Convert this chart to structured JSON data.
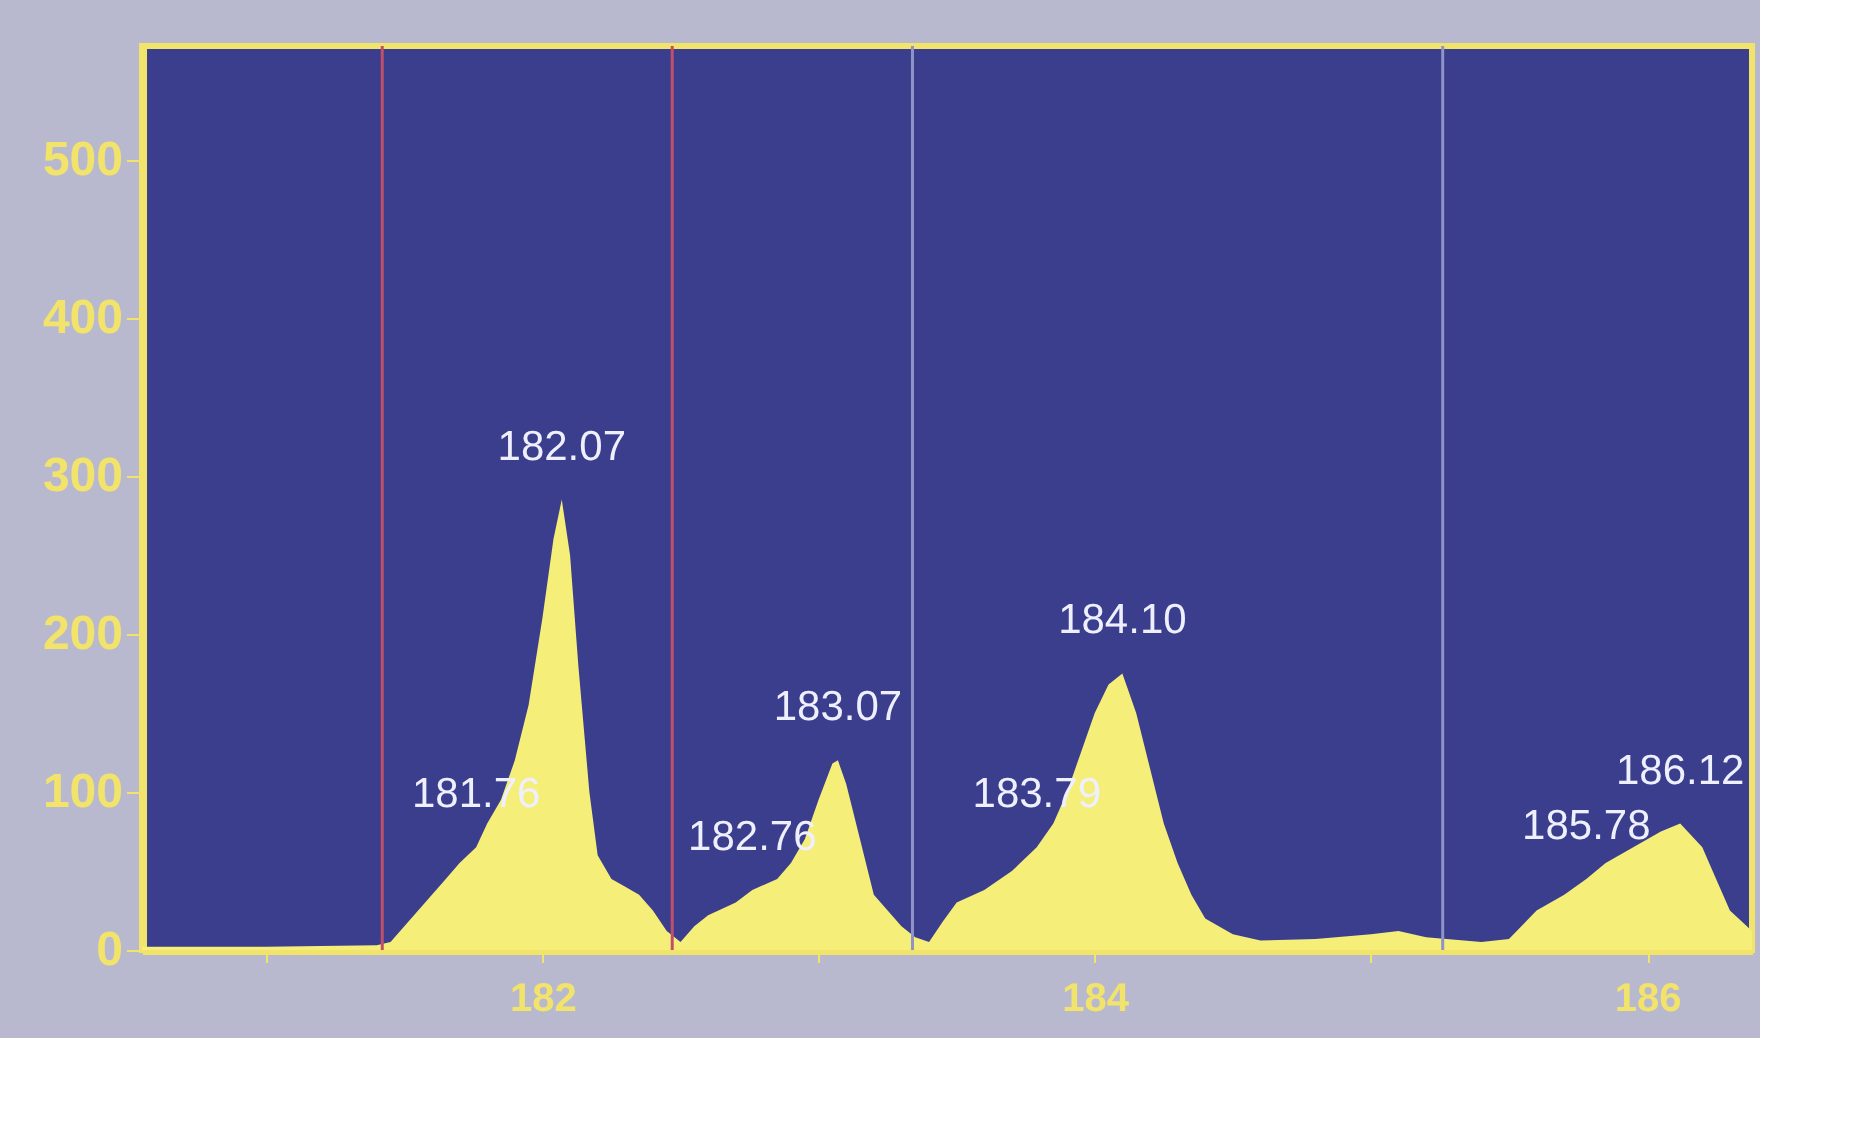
{
  "chart_data": {
    "type": "area",
    "x": [
      180.55,
      181.0,
      181.4,
      181.45,
      181.5,
      181.55,
      181.6,
      181.65,
      181.7,
      181.76,
      181.8,
      181.85,
      181.9,
      181.95,
      182.0,
      182.04,
      182.07,
      182.1,
      182.13,
      182.17,
      182.2,
      182.25,
      182.3,
      182.35,
      182.4,
      182.45,
      182.5,
      182.55,
      182.6,
      182.7,
      182.76,
      182.85,
      182.9,
      182.95,
      183.0,
      183.05,
      183.07,
      183.1,
      183.15,
      183.2,
      183.25,
      183.3,
      183.35,
      183.4,
      183.45,
      183.5,
      183.6,
      183.7,
      183.79,
      183.85,
      183.9,
      183.95,
      184.0,
      184.05,
      184.1,
      184.15,
      184.2,
      184.25,
      184.3,
      184.35,
      184.4,
      184.5,
      184.6,
      184.8,
      185.0,
      185.1,
      185.2,
      185.4,
      185.5,
      185.6,
      185.7,
      185.78,
      185.85,
      185.95,
      186.05,
      186.12,
      186.2,
      186.25,
      186.3,
      186.38
    ],
    "series": [
      {
        "color": "#f5ef7a",
        "values": [
          2,
          2,
          3,
          5,
          15,
          25,
          35,
          45,
          55,
          65,
          80,
          95,
          120,
          155,
          210,
          260,
          285,
          250,
          180,
          100,
          60,
          45,
          40,
          35,
          25,
          12,
          5,
          15,
          22,
          30,
          38,
          45,
          55,
          70,
          95,
          118,
          120,
          105,
          70,
          35,
          25,
          15,
          8,
          5,
          18,
          30,
          38,
          50,
          65,
          80,
          100,
          125,
          150,
          168,
          175,
          150,
          115,
          80,
          55,
          35,
          20,
          10,
          6,
          7,
          10,
          12,
          8,
          5,
          7,
          25,
          35,
          45,
          55,
          65,
          75,
          80,
          65,
          45,
          25,
          12
        ]
      }
    ],
    "xlim": [
      180.55,
      186.38
    ],
    "xticks": [
      {
        "value": 181,
        "label": null
      },
      182,
      {
        "value": 183,
        "label": null
      },
      184,
      {
        "value": 185,
        "label": null
      },
      186
    ],
    "ylim": [
      0,
      572
    ],
    "yticks": [
      0,
      100,
      200,
      300,
      400,
      500
    ],
    "grid": false,
    "ref_lines": [
      {
        "axis": "x",
        "value": 181.42,
        "color": "#c0506a"
      },
      {
        "axis": "x",
        "value": 182.47,
        "color": "#c0506a"
      },
      {
        "axis": "x",
        "value": 183.34,
        "color": "#8f93c8"
      },
      {
        "axis": "x",
        "value": 185.26,
        "color": "#8f93c8"
      }
    ],
    "annotations": [
      {
        "text": "182.07",
        "x": 182.07,
        "y": 285
      },
      {
        "text": "181.76",
        "x": 181.76,
        "y": 65
      },
      {
        "text": "183.07",
        "x": 183.07,
        "y": 120
      },
      {
        "text": "182.76",
        "x": 182.76,
        "y": 38
      },
      {
        "text": "184.10",
        "x": 184.1,
        "y": 175
      },
      {
        "text": "183.79",
        "x": 183.79,
        "y": 65
      },
      {
        "text": "185.78",
        "x": 185.78,
        "y": 45
      },
      {
        "text": "186.12",
        "x": 186.12,
        "y": 80
      }
    ]
  }
}
